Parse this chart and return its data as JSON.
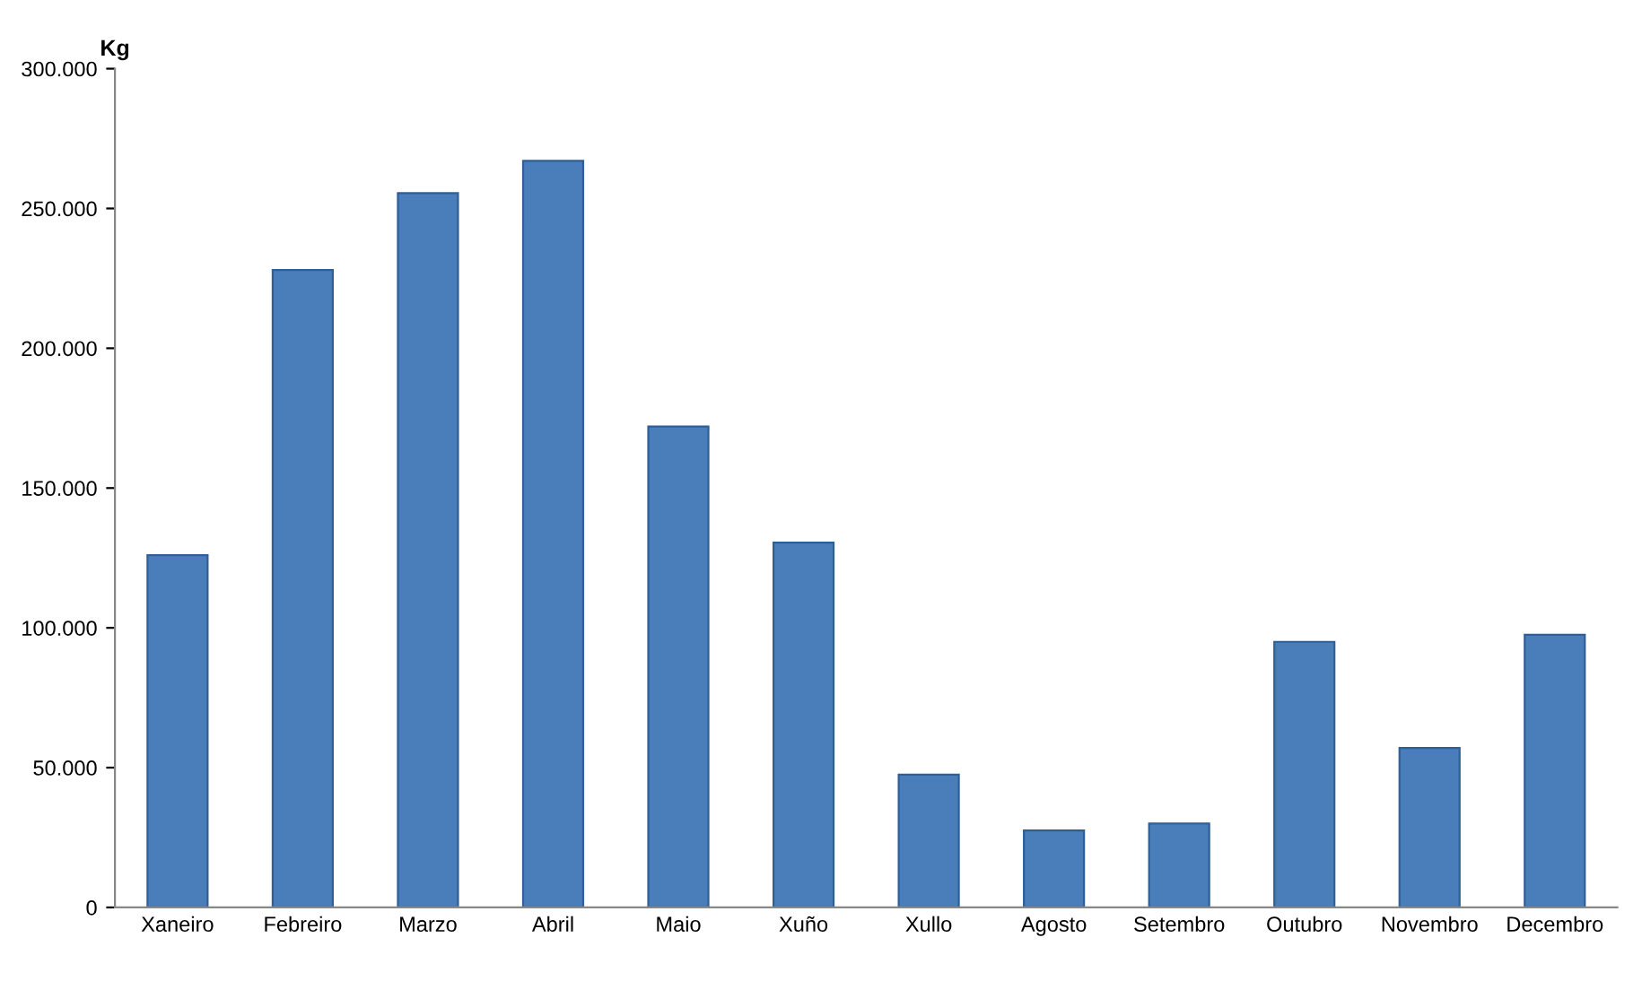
{
  "chart_data": {
    "type": "bar",
    "ylabel": "Kg",
    "categories": [
      "Xaneiro",
      "Febreiro",
      "Marzo",
      "Abril",
      "Maio",
      "Xuño",
      "Xullo",
      "Agosto",
      "Setembro",
      "Outubro",
      "Novembro",
      "Decembro"
    ],
    "values": [
      126000,
      228000,
      255500,
      267000,
      172000,
      130500,
      47500,
      27500,
      30000,
      95000,
      57000,
      97500
    ],
    "color": "#4a7ebb",
    "ylim": [
      0,
      300000
    ],
    "yticks": [
      0,
      {
        "value": 50000,
        "label": "50.000"
      },
      {
        "value": 100000,
        "label": "100.000"
      },
      {
        "value": 150000,
        "label": "150.000"
      },
      {
        "value": 200000,
        "label": "200.000"
      },
      {
        "value": 250000,
        "label": "250.000"
      },
      {
        "value": 300000,
        "label": "300.000"
      }
    ],
    "grid": false
  }
}
